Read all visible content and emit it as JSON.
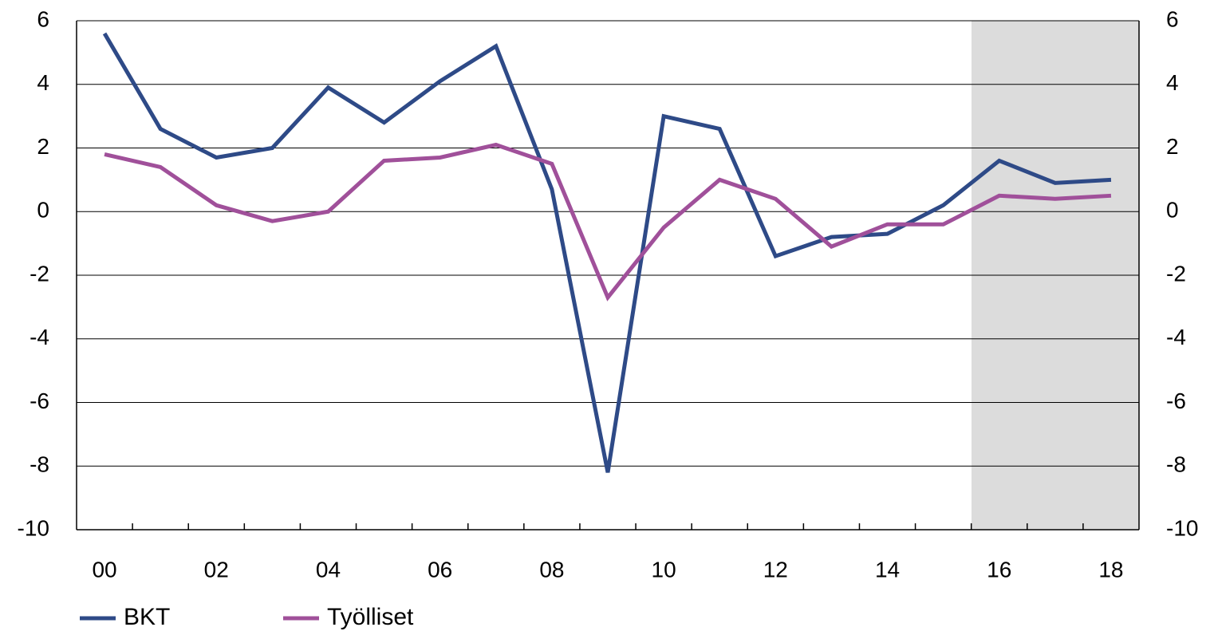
{
  "chart_data": {
    "type": "line",
    "categories": [
      "00",
      null,
      "02",
      null,
      "04",
      null,
      "06",
      null,
      "08",
      null,
      "10",
      null,
      "12",
      null,
      "14",
      null,
      "16",
      null,
      "18"
    ],
    "series": [
      {
        "name": "BKT",
        "color": "#2e4a87",
        "values": [
          5.6,
          2.6,
          1.7,
          2.0,
          3.9,
          2.8,
          4.1,
          5.2,
          0.7,
          -8.2,
          3.0,
          2.6,
          -1.4,
          -0.8,
          -0.7,
          0.2,
          1.6,
          0.9,
          1.0
        ]
      },
      {
        "name": "Työlliset",
        "color": "#a0509a",
        "values": [
          1.8,
          1.4,
          0.2,
          -0.3,
          0.0,
          1.6,
          1.7,
          2.1,
          1.5,
          -2.7,
          -0.5,
          1.0,
          0.4,
          -1.1,
          -0.4,
          -0.4,
          0.5,
          0.4,
          0.5
        ]
      }
    ],
    "ylim": [
      -10,
      6
    ],
    "yticks": [
      -10,
      -8,
      -6,
      -4,
      -2,
      0,
      2,
      4,
      6
    ],
    "y2lim": [
      -10,
      6
    ],
    "y2ticks": [
      -10,
      -8,
      -6,
      -4,
      -2,
      0,
      2,
      4,
      6
    ],
    "grid": true,
    "legend": "bottom"
  }
}
